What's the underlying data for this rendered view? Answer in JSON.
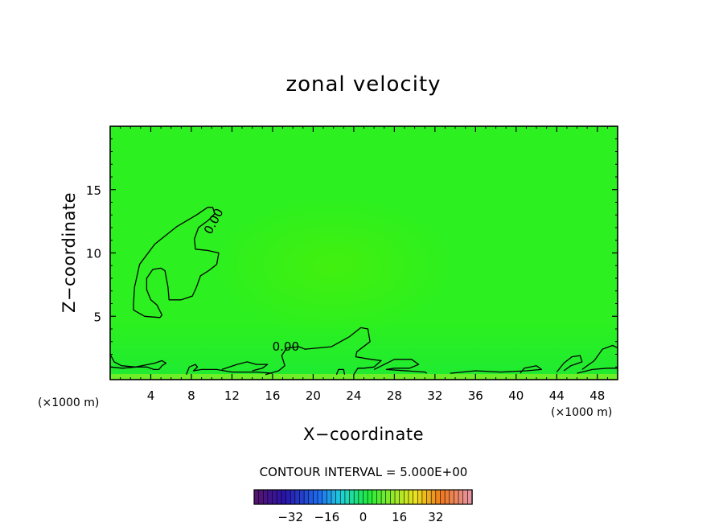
{
  "chart_data": {
    "type": "heatmap",
    "title": "zonal velocity",
    "xlabel": "X−coordinate",
    "ylabel": "Z−coordinate",
    "xlim": [
      0,
      50
    ],
    "ylim": [
      0,
      20
    ],
    "x_ticks": [
      4,
      8,
      12,
      16,
      20,
      24,
      28,
      32,
      36,
      40,
      44,
      48
    ],
    "x_tick_labels": [
      "4",
      "8",
      "12",
      "16",
      "20",
      "24",
      "28",
      "32",
      "36",
      "40",
      "44",
      "48"
    ],
    "y_ticks": [
      5,
      10,
      15
    ],
    "y_tick_labels": [
      "5",
      "10",
      "15"
    ],
    "x_unit_left": "(×1000 m)",
    "x_unit_right": "(×1000 m)",
    "y_unit_left": "(×1000 m)",
    "contour_interval_text": "CONTOUR INTERVAL = 5.000E+00",
    "contour_labels": [
      {
        "text": "0.00",
        "x": 10.2,
        "y": 12.5
      },
      {
        "text": "0.00",
        "x": 17.3,
        "y": 2.6
      }
    ],
    "zero_contours": [
      [
        [
          2.3,
          6.0
        ],
        [
          2.4,
          7.3
        ],
        [
          2.9,
          9.1
        ],
        [
          4.4,
          10.7
        ],
        [
          6.6,
          12.1
        ],
        [
          8.5,
          13.0
        ],
        [
          9.6,
          13.6
        ],
        [
          10.1,
          13.6
        ],
        [
          10.3,
          13.1
        ],
        [
          9.7,
          12.6
        ],
        [
          8.7,
          12.0
        ],
        [
          8.3,
          11.1
        ],
        [
          8.4,
          10.3
        ],
        [
          9.6,
          10.2
        ],
        [
          10.7,
          10.0
        ],
        [
          10.5,
          9.1
        ],
        [
          9.7,
          8.6
        ],
        [
          8.9,
          8.2
        ],
        [
          8.5,
          7.3
        ],
        [
          8.1,
          6.6
        ],
        [
          7.0,
          6.3
        ],
        [
          5.8,
          6.3
        ],
        [
          5.7,
          7.3
        ],
        [
          5.4,
          8.6
        ],
        [
          5.0,
          8.8
        ],
        [
          4.2,
          8.7
        ],
        [
          3.6,
          8.0
        ],
        [
          3.6,
          7.1
        ],
        [
          4.0,
          6.3
        ],
        [
          4.6,
          5.9
        ],
        [
          5.1,
          5.1
        ],
        [
          4.9,
          4.9
        ],
        [
          3.4,
          5.0
        ],
        [
          2.3,
          5.5
        ],
        [
          2.3,
          6.0
        ]
      ],
      [
        [
          0.0,
          2.0
        ],
        [
          0.4,
          1.4
        ],
        [
          1.1,
          1.1
        ],
        [
          2.5,
          1.0
        ],
        [
          4.4,
          1.3
        ],
        [
          5.1,
          1.5
        ],
        [
          5.5,
          1.3
        ],
        [
          5.1,
          1.1
        ],
        [
          4.8,
          0.8
        ],
        [
          4.3,
          0.8
        ],
        [
          3.6,
          1.0
        ],
        [
          2.6,
          1.0
        ],
        [
          1.2,
          0.9
        ],
        [
          0.0,
          1.0
        ]
      ],
      [
        [
          7.5,
          0.4
        ],
        [
          7.8,
          1.0
        ],
        [
          8.4,
          1.2
        ],
        [
          8.6,
          1.0
        ],
        [
          8.2,
          0.7
        ],
        [
          9.0,
          0.8
        ],
        [
          10.5,
          0.8
        ],
        [
          12.0,
          0.6
        ],
        [
          13.0,
          0.6
        ],
        [
          14.5,
          0.6
        ],
        [
          16.0,
          0.5
        ]
      ],
      [
        [
          11.0,
          0.8
        ],
        [
          12.5,
          1.2
        ],
        [
          13.5,
          1.4
        ],
        [
          14.4,
          1.2
        ],
        [
          15.5,
          1.2
        ],
        [
          15.0,
          0.9
        ],
        [
          14.0,
          0.7
        ]
      ],
      [
        [
          15.3,
          0.4
        ],
        [
          16.6,
          0.7
        ],
        [
          17.2,
          1.1
        ],
        [
          16.9,
          1.9
        ],
        [
          17.4,
          2.5
        ],
        [
          18.6,
          2.6
        ],
        [
          19.2,
          2.4
        ],
        [
          20.5,
          2.5
        ],
        [
          21.8,
          2.6
        ],
        [
          23.6,
          3.4
        ],
        [
          24.7,
          4.1
        ],
        [
          25.4,
          4.0
        ],
        [
          25.6,
          3.0
        ],
        [
          24.3,
          2.2
        ],
        [
          24.2,
          1.8
        ],
        [
          25.7,
          1.6
        ],
        [
          26.7,
          1.5
        ],
        [
          26.0,
          1.0
        ],
        [
          25.0,
          0.9
        ],
        [
          24.4,
          0.9
        ],
        [
          24.0,
          0.4
        ]
      ],
      [
        [
          22.3,
          0.4
        ],
        [
          22.5,
          0.8
        ],
        [
          23.0,
          0.8
        ],
        [
          23.1,
          0.4
        ]
      ],
      [
        [
          26.0,
          0.8
        ],
        [
          28.0,
          1.6
        ],
        [
          29.7,
          1.6
        ],
        [
          30.4,
          1.2
        ],
        [
          29.5,
          0.9
        ],
        [
          28.0,
          0.9
        ],
        [
          27.2,
          0.8
        ],
        [
          31.0,
          0.6
        ],
        [
          31.2,
          0.5
        ]
      ],
      [
        [
          33.5,
          0.5
        ],
        [
          36.0,
          0.7
        ],
        [
          38.5,
          0.6
        ],
        [
          41.0,
          0.7
        ],
        [
          42.5,
          0.8
        ],
        [
          42.0,
          1.1
        ],
        [
          40.8,
          0.9
        ],
        [
          40.4,
          0.5
        ]
      ],
      [
        [
          44.0,
          0.6
        ],
        [
          44.7,
          1.3
        ],
        [
          45.5,
          1.8
        ],
        [
          46.3,
          1.9
        ],
        [
          46.5,
          1.4
        ],
        [
          45.4,
          1.1
        ],
        [
          44.7,
          0.7
        ]
      ],
      [
        [
          46.5,
          0.8
        ],
        [
          47.7,
          1.5
        ],
        [
          48.5,
          2.4
        ],
        [
          49.5,
          2.7
        ],
        [
          50.0,
          2.5
        ]
      ],
      [
        [
          46.0,
          0.5
        ],
        [
          47.5,
          0.8
        ],
        [
          49.0,
          0.9
        ],
        [
          50.0,
          0.9
        ]
      ]
    ],
    "colorbar": {
      "ticks": [
        -32,
        -16,
        0,
        16,
        32
      ],
      "tick_labels": [
        "−32",
        "−16",
        "0",
        "16",
        "32"
      ],
      "min": -48,
      "max": 48,
      "segments": 48
    },
    "field_color": "#2cf01f",
    "colors": {
      "field": "#2cf01f",
      "core": "#48f00a",
      "lower_band": "#18e83a",
      "bottom_layer": "#b0f022",
      "background": "#ffffff",
      "axes": "#000000"
    }
  }
}
